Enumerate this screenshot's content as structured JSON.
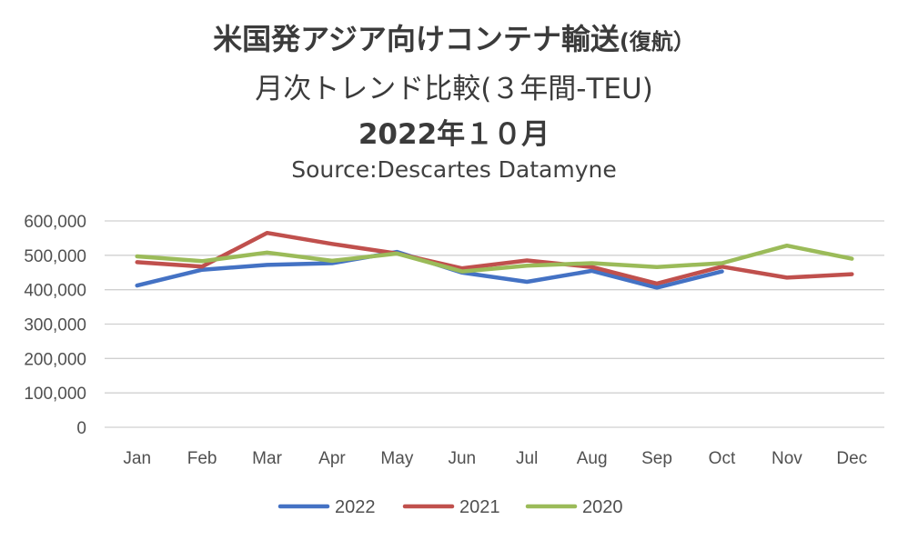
{
  "chart_data": {
    "type": "line",
    "title_line1": "米国発アジア向けコンテナ輸送",
    "title_line1_suffix": "(復航）",
    "title_line2": "月次トレンド比較(３年間-TEU)",
    "title_line3": "2022年１０月",
    "subtitle": "Source:Descartes Datamyne",
    "categories": [
      "Jan",
      "Feb",
      "Mar",
      "Apr",
      "May",
      "Jun",
      "Jul",
      "Aug",
      "Sep",
      "Oct",
      "Nov",
      "Dec"
    ],
    "y_ticks": [
      "600,000",
      "500,000",
      "400,000",
      "300,000",
      "200,000",
      "100,000",
      "0"
    ],
    "ylim": [
      0,
      600000
    ],
    "grid": true,
    "legend_position": "bottom",
    "series": [
      {
        "name": "2022",
        "color": "#4472c4",
        "values": [
          412000,
          458000,
          472000,
          477000,
          510000,
          450000,
          423000,
          455000,
          406000,
          453000,
          null,
          null
        ]
      },
      {
        "name": "2021",
        "color": "#c0504d",
        "values": [
          480000,
          467000,
          565000,
          533000,
          505000,
          462000,
          485000,
          466000,
          418000,
          467000,
          435000,
          445000
        ]
      },
      {
        "name": "2020",
        "color": "#9bbb59",
        "values": [
          497000,
          483000,
          508000,
          484000,
          505000,
          453000,
          470000,
          477000,
          466000,
          477000,
          528000,
          490000
        ]
      }
    ]
  }
}
